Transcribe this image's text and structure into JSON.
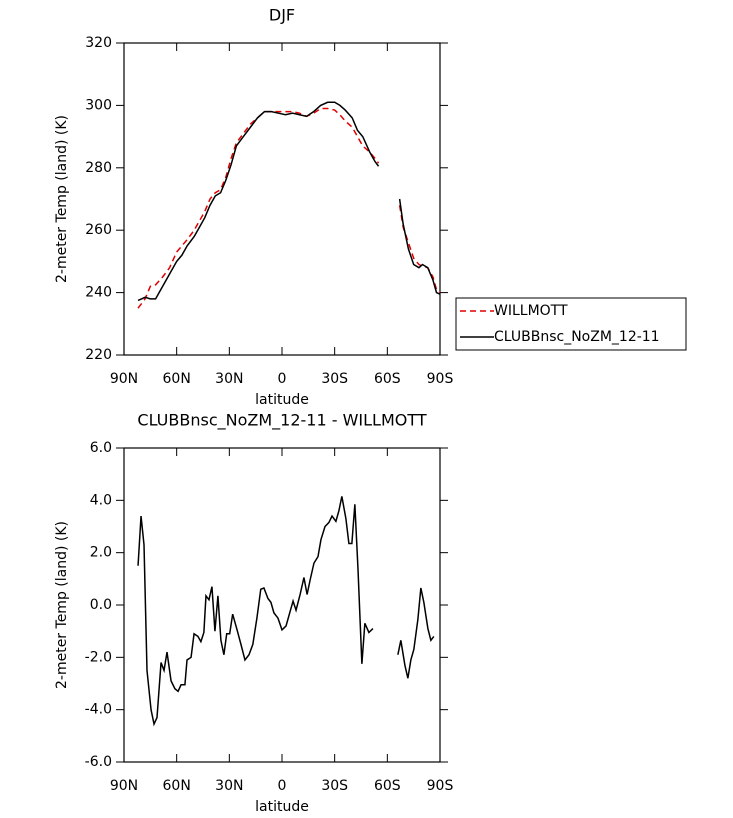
{
  "chart_data": [
    {
      "type": "line",
      "title": "DJF",
      "xlabel": "latitude",
      "ylabel": "2-meter Temp (land) (K)",
      "x": [
        82,
        78,
        75,
        72,
        68,
        64,
        60,
        57,
        54,
        50,
        47,
        44,
        41,
        38,
        35,
        32,
        29,
        26,
        22,
        18,
        14,
        10,
        6,
        2,
        -2,
        -6,
        -10,
        -14,
        -18,
        -22,
        -26,
        -30,
        -33,
        -36,
        -40,
        -43,
        -46,
        -50,
        -53,
        -55,
        -60,
        -67,
        -69,
        -72,
        -75,
        -78,
        -80,
        -83,
        -86,
        -88,
        -90
      ],
      "series": [
        {
          "name": "WILLMOTT",
          "color": "#e00000",
          "linestyle": "dashed",
          "values": [
            235,
            238,
            242,
            242.5,
            245,
            248,
            253,
            255,
            257,
            260,
            263,
            266,
            270,
            272,
            273,
            277,
            283,
            288,
            291,
            294,
            296,
            298,
            298,
            298,
            298,
            298,
            297.5,
            296.5,
            297.5,
            299,
            299,
            298.5,
            297,
            295,
            293,
            290,
            287,
            285,
            283,
            281.5,
            null,
            268,
            261,
            256,
            251,
            249,
            248.5,
            248,
            245,
            241,
            240
          ]
        },
        {
          "name": "CLUBBnsc_NoZM_12-11",
          "color": "#000000",
          "linestyle": "solid",
          "values": [
            237.5,
            238.5,
            238,
            238,
            242,
            246,
            250,
            252,
            255,
            258,
            261,
            264,
            268,
            271,
            272,
            276,
            281,
            287,
            290,
            293,
            296,
            298,
            298,
            297.5,
            297,
            297.5,
            297,
            296.5,
            298,
            300,
            301,
            301,
            300,
            298.5,
            296,
            292,
            290,
            285,
            282,
            280.5,
            null,
            270,
            262,
            254,
            249,
            248,
            249,
            248,
            244,
            240,
            239.5
          ]
        }
      ],
      "xlim": [
        90,
        -90
      ],
      "xticks": [
        {
          "value": 90,
          "label": "90N"
        },
        {
          "value": 60,
          "label": "60N"
        },
        {
          "value": 30,
          "label": "30N"
        },
        0,
        {
          "value": -30,
          "label": "30S"
        },
        {
          "value": -60,
          "label": "60S"
        },
        {
          "value": -90,
          "label": "90S"
        }
      ],
      "ylim": [
        220,
        320
      ],
      "yticks": [
        220,
        240,
        260,
        280,
        300,
        320
      ],
      "legend": "right"
    },
    {
      "type": "line",
      "title": "CLUBBnsc_NoZM_12-11 - WILLMOTT",
      "xlabel": "latitude",
      "ylabel": "2-meter Temp (land) (K)",
      "x": [
        82,
        80.3,
        78.6,
        76.9,
        74.6,
        72.9,
        71.2,
        68.9,
        67.2,
        65.5,
        63.2,
        61,
        59.2,
        57.5,
        55.3,
        54.1,
        51.8,
        50.1,
        47.9,
        46.2,
        44.5,
        43.3,
        41.6,
        39.9,
        38.2,
        36.5,
        34.8,
        33.1,
        31.5,
        29.8,
        28.1,
        25.6,
        23.4,
        21.1,
        18.8,
        16.6,
        14.3,
        12.1,
        10.3,
        8,
        6.3,
        4.6,
        2.3,
        0,
        -2.3,
        -4.6,
        -6.3,
        -8,
        -10.3,
        -12.5,
        -14.3,
        -16,
        -18.2,
        -20.5,
        -22.2,
        -24.5,
        -26.7,
        -28.5,
        -30.7,
        -32.4,
        -34.1,
        -36.4,
        -38.1,
        -39.8,
        -41.5,
        -43.3,
        -45.5,
        -47.2,
        -49.5,
        -51.8,
        -60,
        -66,
        -67.7,
        -70,
        -71.7,
        -73.4,
        -75.1,
        -77.4,
        -79.1,
        -80.8,
        -83.1,
        -84.8,
        -86.5
      ],
      "values": [
        1.5,
        3.4,
        2.3,
        -2.5,
        -4.0,
        -4.55,
        -4.3,
        -2.2,
        -2.5,
        -1.8,
        -2.9,
        -3.2,
        -3.3,
        -3.05,
        -3.05,
        -2.1,
        -2.0,
        -1.1,
        -1.2,
        -1.4,
        -1.05,
        0.35,
        0.2,
        0.7,
        -1.0,
        0.35,
        -1.35,
        -1.9,
        -1.1,
        -1.1,
        -0.35,
        -0.95,
        -1.5,
        -2.1,
        -1.9,
        -1.5,
        -0.5,
        0.6,
        0.65,
        0.25,
        0.1,
        -0.3,
        -0.5,
        -0.95,
        -0.8,
        -0.25,
        0.15,
        -0.2,
        0.4,
        1.05,
        0.4,
        0.95,
        1.6,
        1.85,
        2.5,
        3.0,
        3.15,
        3.4,
        3.2,
        3.6,
        4.15,
        3.3,
        2.35,
        2.35,
        3.85,
        1.35,
        -2.25,
        -0.7,
        -1.05,
        -0.9,
        null,
        -1.9,
        -1.35,
        -2.3,
        -2.8,
        -2.1,
        -1.7,
        -0.55,
        0.65,
        0.1,
        -0.9,
        -1.35,
        -1.2
      ],
      "color": "#000000",
      "xlim": [
        90,
        -90
      ],
      "xticks": [
        {
          "value": 90,
          "label": "90N"
        },
        {
          "value": 60,
          "label": "60N"
        },
        {
          "value": 30,
          "label": "30N"
        },
        0,
        {
          "value": -30,
          "label": "30S"
        },
        {
          "value": -60,
          "label": "60S"
        },
        {
          "value": -90,
          "label": "90S"
        }
      ],
      "ylim": [
        -6,
        6
      ],
      "yticks": [
        {
          "value": -6,
          "label": "-6.0"
        },
        {
          "value": -4,
          "label": "-4.0"
        },
        {
          "value": -2,
          "label": "-2.0"
        },
        {
          "value": 0,
          "label": "0.0"
        },
        {
          "value": 2,
          "label": "2.0"
        },
        {
          "value": 4,
          "label": "4.0"
        },
        {
          "value": 6,
          "label": "6.0"
        }
      ]
    }
  ]
}
